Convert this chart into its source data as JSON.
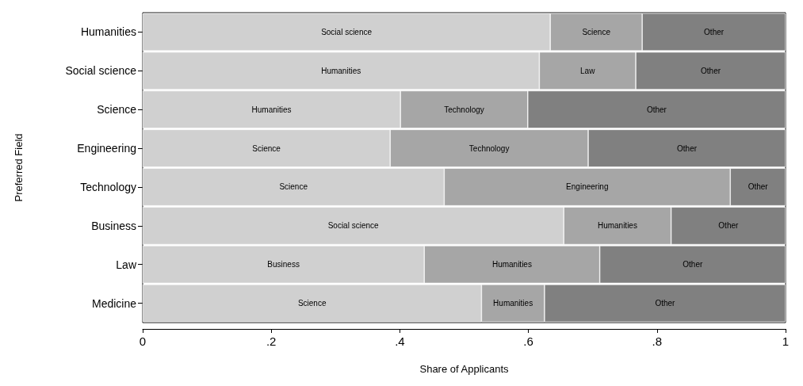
{
  "chart_data": {
    "type": "bar",
    "orientation": "horizontal",
    "stacked": true,
    "xlabel": "Share of Applicants",
    "ylabel": "Preferred Field",
    "categories": [
      "Humanities",
      "Social science",
      "Science",
      "Engineering",
      "Technology",
      "Business",
      "Law",
      "Medicine"
    ],
    "series": [
      {
        "color": "#d0d0d0",
        "values": [
          0.634,
          0.617,
          0.401,
          0.385,
          0.469,
          0.655,
          0.438,
          0.527
        ],
        "value_labels": [
          "Social science",
          "Humanities",
          "Humanities",
          "Science",
          "Science",
          "Social science",
          "Business",
          "Science"
        ]
      },
      {
        "color": "#a6a6a6",
        "values": [
          0.143,
          0.15,
          0.198,
          0.308,
          0.445,
          0.167,
          0.273,
          0.098
        ],
        "value_labels": [
          "Science",
          "Law",
          "Technology",
          "Technology",
          "Engineering",
          "Humanities",
          "Humanities",
          "Humanities"
        ]
      },
      {
        "color": "#808080",
        "values": [
          0.223,
          0.233,
          0.401,
          0.307,
          0.086,
          0.178,
          0.289,
          0.375
        ],
        "value_labels": [
          "Other",
          "Other",
          "Other",
          "Other",
          "Other",
          "Other",
          "Other",
          "Other"
        ]
      }
    ],
    "xlim": [
      0,
      1
    ],
    "xticks": [
      {
        "value": 0,
        "label": "0"
      },
      {
        "value": 0.2,
        "label": ".2"
      },
      {
        "value": 0.4,
        "label": ".4"
      },
      {
        "value": 0.6,
        "label": ".6"
      },
      {
        "value": 0.8,
        "label": ".8"
      },
      {
        "value": 1,
        "label": "1"
      }
    ],
    "grid": false
  }
}
